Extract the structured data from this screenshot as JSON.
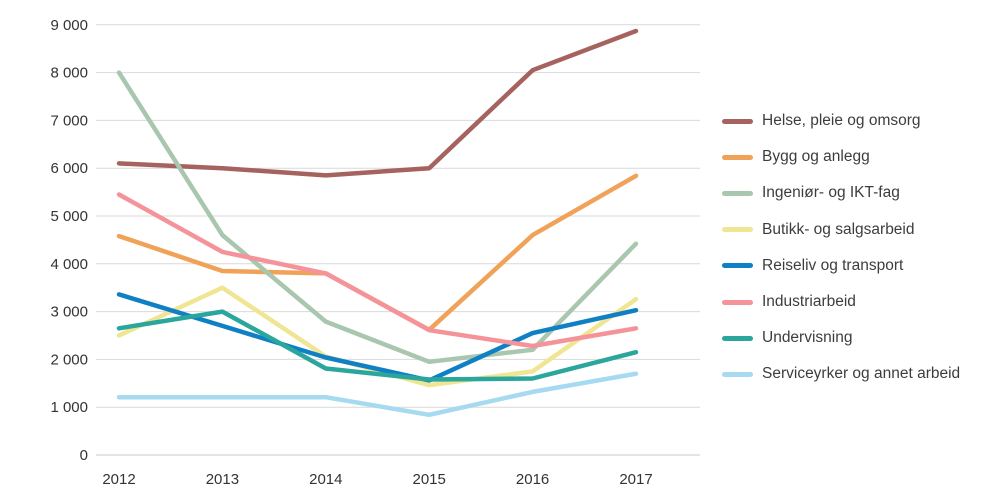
{
  "chart_data": {
    "type": "line",
    "title": "",
    "xlabel": "",
    "ylabel": "",
    "categories": [
      "2012",
      "2013",
      "2014",
      "2015",
      "2016",
      "2017"
    ],
    "series": [
      {
        "name": "Helse, pleie og omsorg",
        "color": "#a5625e",
        "values": [
          6100,
          6000,
          5850,
          6000,
          8050,
          8870
        ]
      },
      {
        "name": "Bygg og anlegg",
        "color": "#f0a259",
        "values": [
          4580,
          3850,
          3800,
          2620,
          4600,
          5840
        ]
      },
      {
        "name": "Ingeniør- og IKT-fag",
        "color": "#a9c6ae",
        "values": [
          8000,
          4600,
          2790,
          1950,
          2200,
          4420
        ]
      },
      {
        "name": "Butikk- og salgsarbeid",
        "color": "#f0e593",
        "values": [
          2500,
          3500,
          2060,
          1460,
          1750,
          3260
        ]
      },
      {
        "name": "Reiseliv og transport",
        "color": "#1080c4",
        "values": [
          3360,
          2700,
          2040,
          1560,
          2550,
          3030
        ]
      },
      {
        "name": "Industriarbeid",
        "color": "#f4949a",
        "values": [
          5450,
          4250,
          3800,
          2610,
          2280,
          2650
        ]
      },
      {
        "name": "Undervisning",
        "color": "#2aa69d",
        "values": [
          2650,
          3000,
          1810,
          1580,
          1600,
          2150
        ]
      },
      {
        "name": "Serviceyrker og annet arbeid",
        "color": "#a5daf0",
        "values": [
          1210,
          1210,
          1210,
          840,
          1320,
          1700
        ]
      }
    ],
    "ylim": [
      0,
      9000
    ],
    "ytick_step": 1000,
    "ytick_labels": [
      "0",
      "1 000",
      "2 000",
      "3 000",
      "4 000",
      "5 000",
      "6 000",
      "7 000",
      "8 000",
      "9 000"
    ],
    "grid": true,
    "gridline_color": "#d9d9d9",
    "baseline_color": "#c9c9c9",
    "legend_position": "right"
  }
}
